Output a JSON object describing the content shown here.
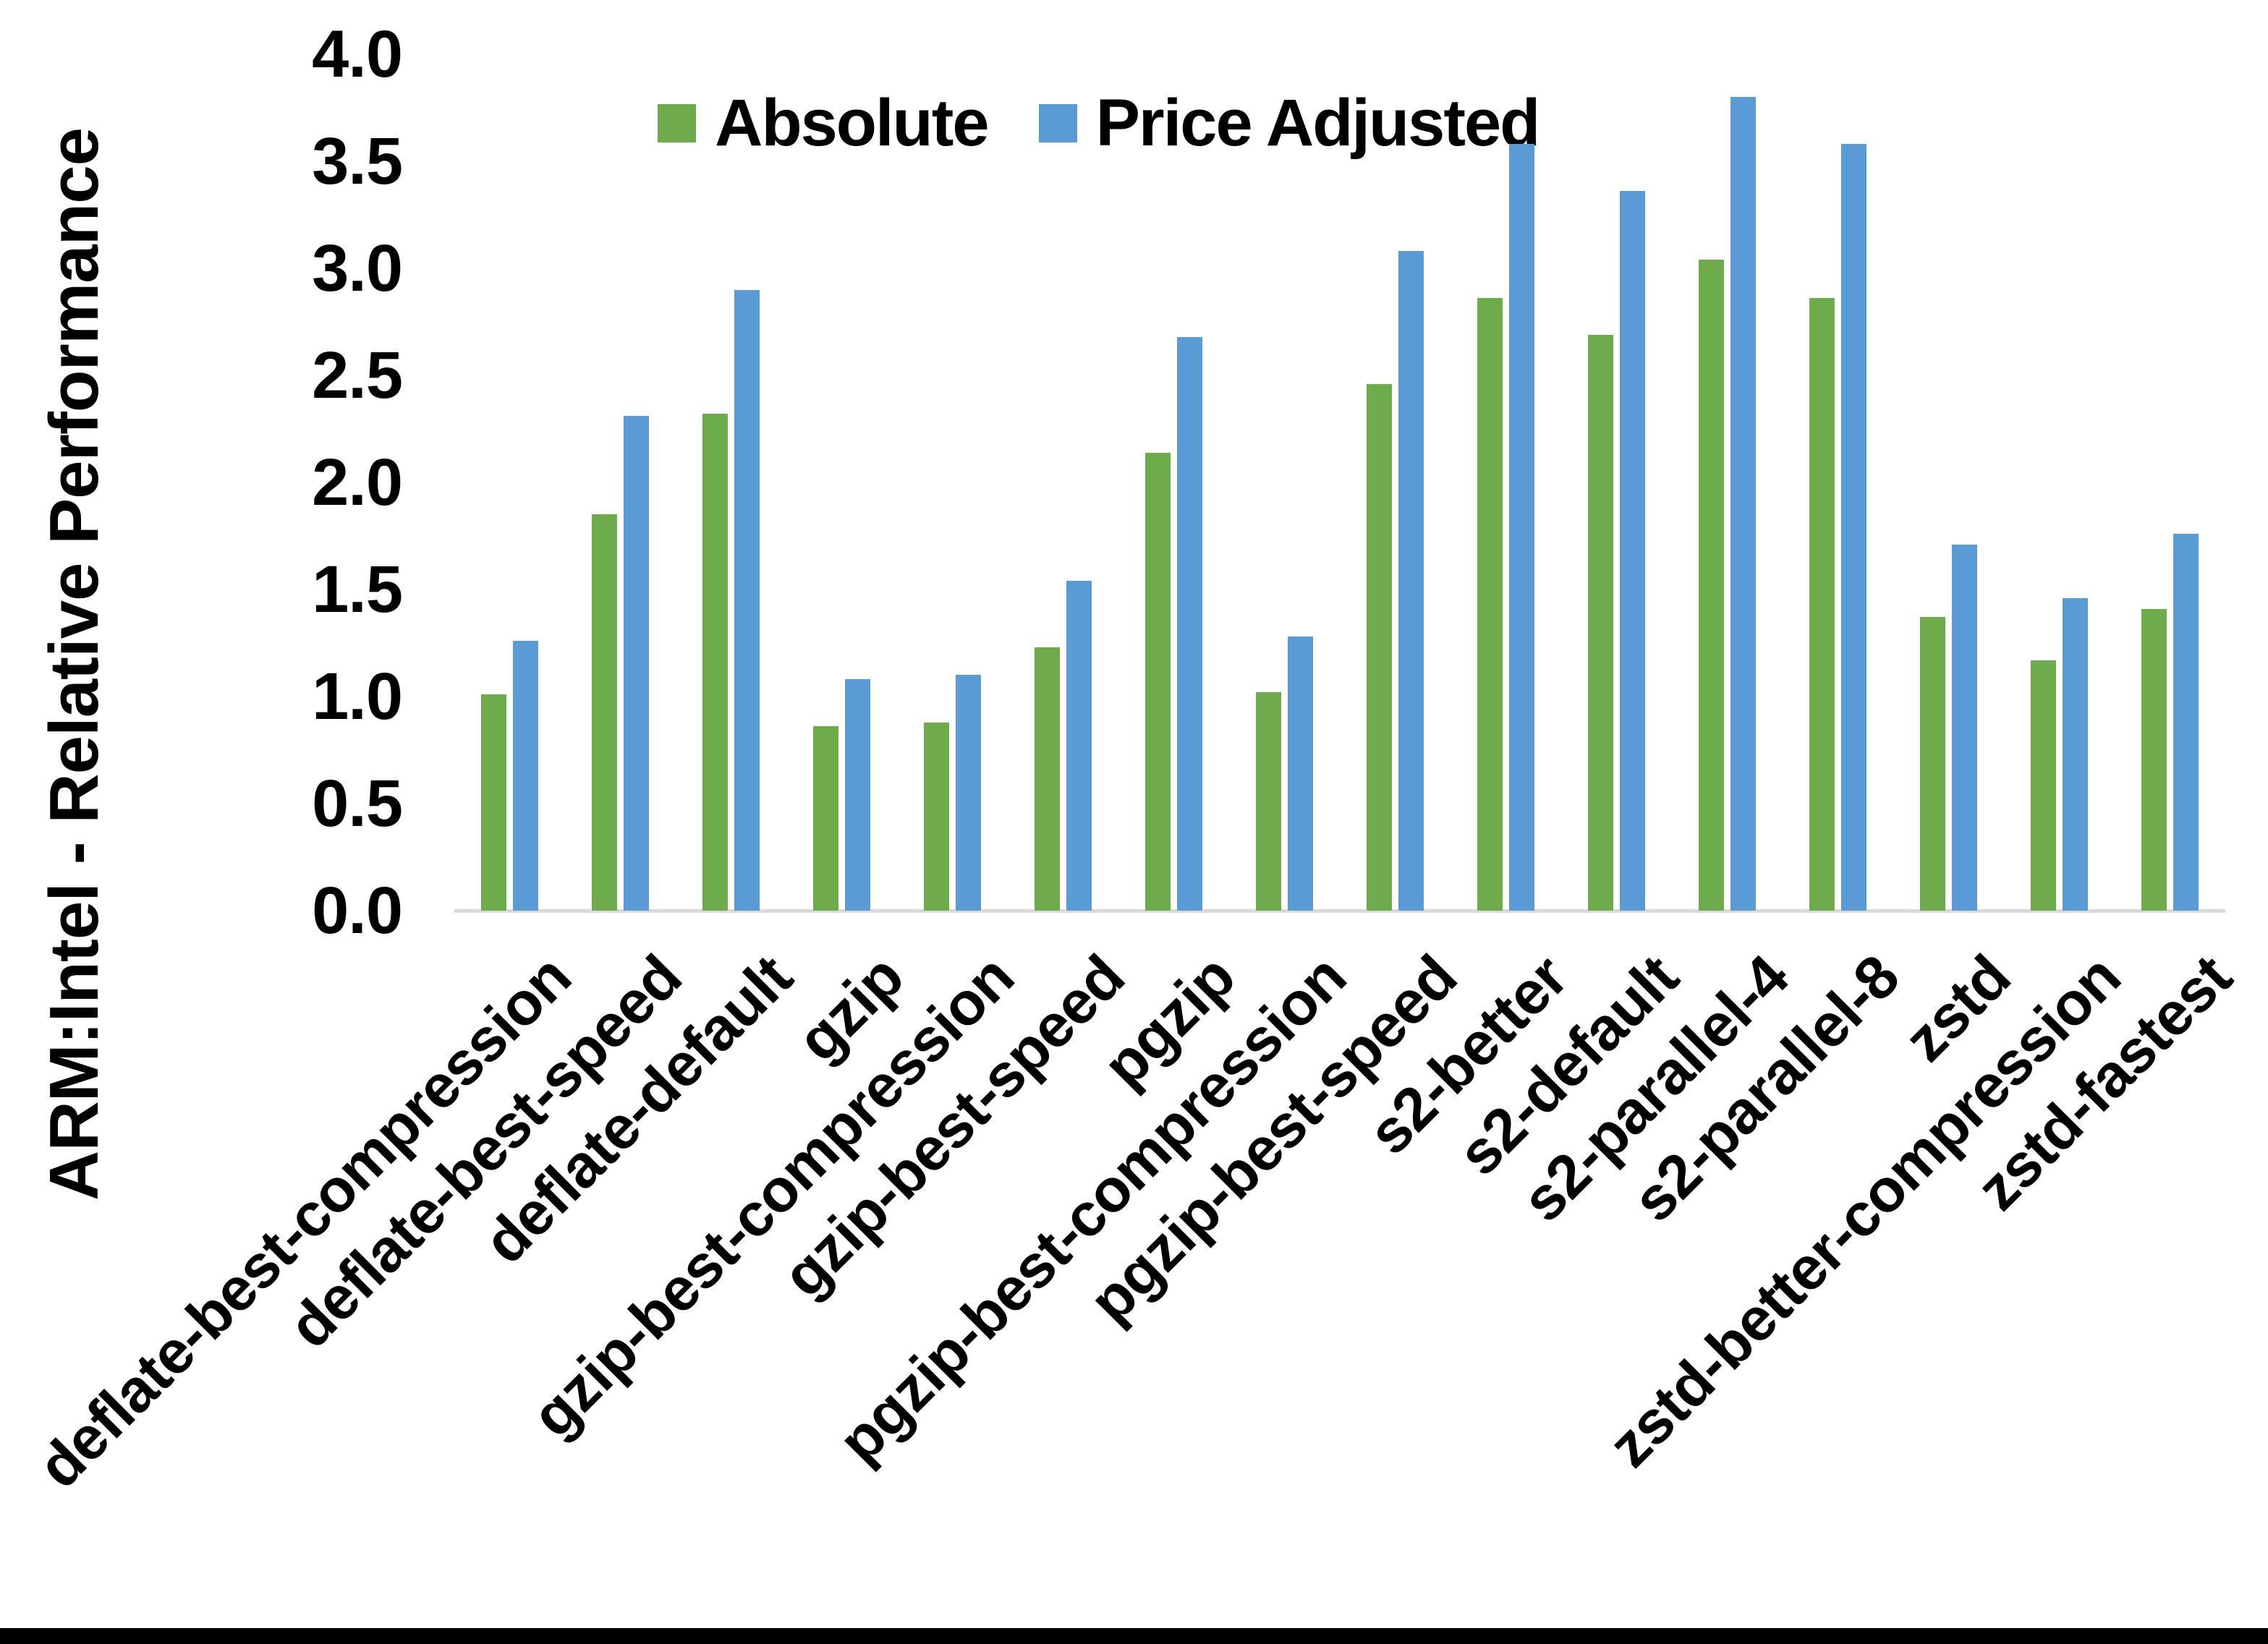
{
  "chart_data": {
    "type": "bar",
    "title": "",
    "xlabel": "",
    "ylabel": "ARM:Intel - Relative Performance",
    "ylim": [
      0.0,
      4.0
    ],
    "ytick_step": 0.5,
    "ytick_labels": [
      "0.0",
      "0.5",
      "1.0",
      "1.5",
      "2.0",
      "2.5",
      "3.0",
      "3.5",
      "4.0"
    ],
    "grid": "off",
    "legend_position": "top-center",
    "categories": [
      "deflate-best-compression",
      "deflate-best-speed",
      "deflate-default",
      "gzip",
      "gzip-best-compression",
      "gzip-best-speed",
      "pgzip",
      "pgzip-best-compression",
      "pgzip-best-speed",
      "s2-better",
      "s2-default",
      "s2-parallel-4",
      "s2-parallel-8",
      "zstd",
      "zstd-better-compression",
      "zstd-fastest"
    ],
    "series": [
      {
        "name": "Absolute",
        "color": "#6DAB4C",
        "values": [
          1.01,
          1.85,
          2.32,
          0.86,
          0.88,
          1.23,
          2.14,
          1.02,
          2.46,
          2.86,
          2.69,
          3.04,
          2.86,
          1.37,
          1.17,
          1.41
        ]
      },
      {
        "name": "Price Adjusted",
        "color": "#5A9BD5",
        "values": [
          1.26,
          2.31,
          2.9,
          1.08,
          1.1,
          1.54,
          2.68,
          1.28,
          3.08,
          3.58,
          3.36,
          3.8,
          3.58,
          1.71,
          1.46,
          1.76
        ]
      }
    ]
  },
  "colors": {
    "background": "#FFFFFF",
    "axis_line": "#D9D9D9",
    "text": "#000000",
    "bottom_border": "#000000"
  }
}
